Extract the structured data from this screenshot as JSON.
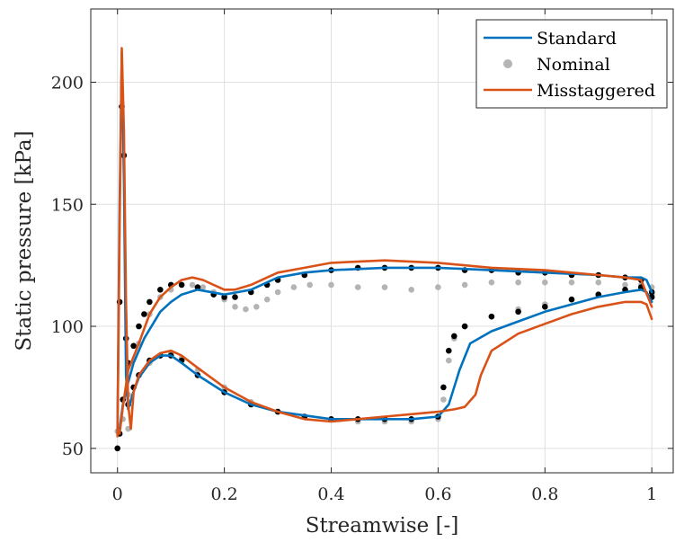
{
  "chart_data": {
    "type": "line",
    "title": "",
    "xlabel": "Streamwise [-]",
    "ylabel": "Static pressure [kPa]",
    "xlim": [
      -0.05,
      1.04
    ],
    "ylim": [
      40,
      230
    ],
    "xticks": [
      0,
      0.2,
      0.4,
      0.6,
      0.8,
      1
    ],
    "xtick_labels": [
      "0",
      "0.2",
      "0.4",
      "0.6",
      "0.8",
      "1"
    ],
    "yticks": [
      50,
      100,
      150,
      200
    ],
    "ytick_labels": [
      "50",
      "100",
      "150",
      "200"
    ],
    "grid": true,
    "legend_position": "top-right",
    "colors": {
      "standard": "#0072bd",
      "nominal_light": "#b4b4b4",
      "nominal_dark": "#000000",
      "misstaggered": "#d95319"
    },
    "series": [
      {
        "name": "Standard",
        "style": "line",
        "color": "#0072bd",
        "segments": [
          {
            "x": [
              0,
              0.004,
              0.008,
              0.012,
              0.016,
              0.02,
              0.028,
              0.04,
              0.06,
              0.08,
              0.1,
              0.12,
              0.15,
              0.2,
              0.25,
              0.3,
              0.4,
              0.5,
              0.55,
              0.6,
              0.62,
              0.64,
              0.66,
              0.7,
              0.75,
              0.8,
              0.85,
              0.9,
              0.95,
              0.98,
              0.99,
              1
            ],
            "y": [
              57,
              150,
              212,
              160,
              80,
              66,
              72,
              79,
              85,
              88,
              88,
              85,
              80,
              73,
              68,
              65,
              62,
              62,
              62,
              63,
              68,
              82,
              93,
              98,
              102,
              106,
              109,
              112,
              114,
              115,
              114,
              110
            ]
          },
          {
            "x": [
              0.004,
              0.01,
              0.02,
              0.03,
              0.05,
              0.08,
              0.1,
              0.12,
              0.15,
              0.2,
              0.25,
              0.3,
              0.35,
              0.4,
              0.5,
              0.6,
              0.7,
              0.8,
              0.9,
              0.95,
              0.98,
              0.99,
              1
            ],
            "y": [
              58,
              68,
              77,
              85,
              95,
              106,
              110,
              113,
              115,
              113,
              115,
              120,
              122,
              123,
              124,
              124,
              123,
              122,
              121,
              120,
              120,
              119,
              114
            ]
          }
        ]
      },
      {
        "name": "Nominal",
        "style": "markers",
        "color": "#b4b4b4",
        "segments": [
          {
            "x": [
              0,
              0.02,
              0.04,
              0.06,
              0.08,
              0.1,
              0.12,
              0.15,
              0.2,
              0.25,
              0.3,
              0.35,
              0.4,
              0.45,
              0.5,
              0.55,
              0.6,
              0.61,
              0.62,
              0.63,
              0.65,
              0.7,
              0.75,
              0.8,
              0.85,
              0.9,
              0.95,
              0.98,
              1
            ],
            "y": [
              57,
              58,
              80,
              85,
              88,
              89,
              87,
              82,
              75,
              69,
              65,
              63,
              62,
              61,
              61,
              61,
              62,
              70,
              86,
              95,
              100,
              104,
              107,
              109,
              111,
              113,
              115,
              116,
              113
            ]
          },
          {
            "x": [
              0.01,
              0.02,
              0.04,
              0.06,
              0.08,
              0.1,
              0.12,
              0.14,
              0.16,
              0.18,
              0.2,
              0.22,
              0.24,
              0.26,
              0.28,
              0.3,
              0.33,
              0.36,
              0.4,
              0.45,
              0.5,
              0.55,
              0.6,
              0.65,
              0.7,
              0.75,
              0.8,
              0.85,
              0.9,
              0.95,
              0.98,
              1
            ],
            "y": [
              62,
              72,
              93,
              105,
              112,
              115,
              117,
              117,
              116,
              114,
              111,
              108,
              107,
              108,
              111,
              114,
              116,
              117,
              117,
              116,
              116,
              115,
              116,
              117,
              118,
              118,
              118,
              118,
              118,
              117,
              117,
              116
            ]
          }
        ]
      },
      {
        "name": "",
        "style": "markers",
        "color": "#000000",
        "segments": [
          {
            "x": [
              0,
              0.004,
              0.008,
              0.012,
              0.016,
              0.02,
              0.03,
              0.04,
              0.06,
              0.08,
              0.1,
              0.12,
              0.15,
              0.2,
              0.25,
              0.3,
              0.35,
              0.4,
              0.45,
              0.5,
              0.55,
              0.6,
              0.61,
              0.62,
              0.63,
              0.65,
              0.7,
              0.75,
              0.8,
              0.85,
              0.9,
              0.95,
              0.98,
              1
            ],
            "y": [
              50,
              110,
              190,
              170,
              95,
              68,
              75,
              80,
              86,
              88,
              88,
              86,
              80,
              73,
              68,
              65,
              63,
              62,
              62,
              62,
              62,
              63,
              75,
              90,
              96,
              100,
              104,
              106,
              108,
              111,
              113,
              115,
              116,
              112
            ]
          },
          {
            "x": [
              0.004,
              0.01,
              0.02,
              0.03,
              0.04,
              0.05,
              0.06,
              0.08,
              0.1,
              0.12,
              0.15,
              0.18,
              0.2,
              0.22,
              0.25,
              0.28,
              0.3,
              0.35,
              0.4,
              0.45,
              0.5,
              0.55,
              0.6,
              0.65,
              0.7,
              0.75,
              0.8,
              0.85,
              0.9,
              0.95,
              0.98,
              1
            ],
            "y": [
              56,
              70,
              85,
              92,
              100,
              105,
              110,
              115,
              117,
              117,
              116,
              113,
              112,
              112,
              114,
              117,
              119,
              121,
              123,
              124,
              124,
              124,
              124,
              123,
              123,
              122,
              122,
              121,
              121,
              120,
              119,
              114
            ]
          }
        ]
      },
      {
        "name": "Misstaggered",
        "style": "line",
        "color": "#d95319",
        "segments": [
          {
            "x": [
              0,
              0.004,
              0.008,
              0.012,
              0.016,
              0.02,
              0.025,
              0.03,
              0.04,
              0.06,
              0.08,
              0.1,
              0.12,
              0.15,
              0.2,
              0.25,
              0.3,
              0.35,
              0.4,
              0.45,
              0.5,
              0.55,
              0.6,
              0.63,
              0.65,
              0.67,
              0.68,
              0.7,
              0.75,
              0.8,
              0.85,
              0.9,
              0.95,
              0.98,
              0.99,
              1
            ],
            "y": [
              55,
              140,
              214,
              180,
              110,
              68,
              58,
              73,
              80,
              86,
              89,
              90,
              88,
              83,
              75,
              69,
              65,
              62,
              61,
              62,
              63,
              64,
              65,
              66,
              67,
              72,
              80,
              90,
              97,
              101,
              105,
              108,
              110,
              110,
              109,
              103
            ]
          },
          {
            "x": [
              0.004,
              0.01,
              0.02,
              0.04,
              0.06,
              0.08,
              0.1,
              0.12,
              0.14,
              0.16,
              0.18,
              0.2,
              0.22,
              0.25,
              0.28,
              0.3,
              0.35,
              0.4,
              0.5,
              0.6,
              0.7,
              0.8,
              0.9,
              0.95,
              0.98,
              1
            ],
            "y": [
              56,
              67,
              82,
              93,
              105,
              112,
              116,
              119,
              120,
              119,
              117,
              115,
              115,
              117,
              120,
              122,
              124,
              126,
              127,
              126,
              124,
              123,
              121,
              120,
              119,
              108
            ]
          }
        ]
      }
    ],
    "legend": [
      {
        "label": "Standard",
        "symbol": "line",
        "color": "#0072bd"
      },
      {
        "label": "Nominal",
        "symbol": "marker",
        "color": "#b4b4b4"
      },
      {
        "label": "Misstaggered",
        "symbol": "line",
        "color": "#d95319"
      }
    ]
  }
}
